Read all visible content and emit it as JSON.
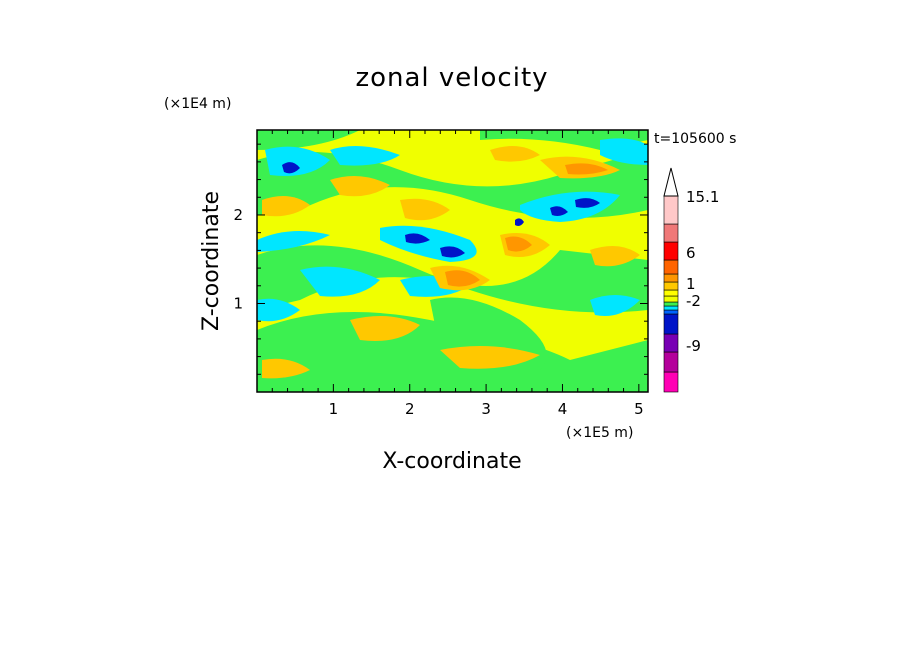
{
  "chart_data": {
    "type": "heatmap",
    "title": "zonal velocity",
    "xlabel": "X-coordinate",
    "ylabel": "Z-coordinate",
    "x_scale_label": "(×1E5 m)",
    "y_scale_label": "(×1E4 m)",
    "time_label": "t=105600 s",
    "xlim": [
      0,
      5.12
    ],
    "ylim": [
      0,
      2.96
    ],
    "x_ticks": [
      1,
      2,
      3,
      4,
      5
    ],
    "y_ticks": [
      1,
      2
    ],
    "x_tick_labels": [
      "1",
      "2",
      "3",
      "4",
      "5"
    ],
    "y_tick_labels": [
      "1",
      "2"
    ],
    "colorbar": {
      "max_label": "15.1",
      "labels": [
        "15.1",
        "6",
        "1",
        "-2",
        "-9"
      ],
      "label_values": [
        15.1,
        6,
        1,
        -2,
        -9
      ],
      "levels": [
        {
          "color": "#ff00b4"
        },
        {
          "color": "#b4009b"
        },
        {
          "color": "#7800b4"
        },
        {
          "color": "#0014c8"
        },
        {
          "color": "#0064ff"
        },
        {
          "color": "#00e6ff"
        },
        {
          "color": "#3cf050"
        },
        {
          "color": "#f0ff00"
        },
        {
          "color": "#ffff00"
        },
        {
          "color": "#ffc800"
        },
        {
          "color": "#ff9600"
        },
        {
          "color": "#ff6400"
        },
        {
          "color": "#ff0000"
        },
        {
          "color": "#f07878"
        },
        {
          "color": "#ffc8c8"
        }
      ],
      "extend_color": "#ffffff"
    }
  }
}
